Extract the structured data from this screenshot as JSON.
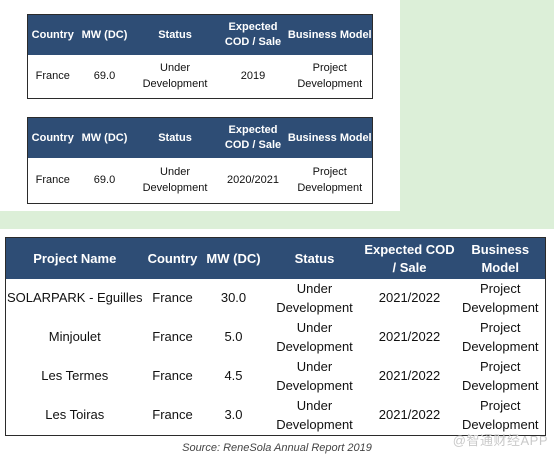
{
  "table1": {
    "headers": [
      "Country",
      "MW (DC)",
      "Status",
      "Expected COD / Sale",
      "Business Model"
    ],
    "row": [
      "France",
      "69.0",
      "Under Development",
      "2019",
      "Project Development"
    ]
  },
  "table2": {
    "headers": [
      "Country",
      "MW (DC)",
      "Status",
      "Expected COD / Sale",
      "Business Model"
    ],
    "row": [
      "France",
      "69.0",
      "Under Development",
      "2020/2021",
      "Project Development"
    ]
  },
  "table3": {
    "headers": [
      "Project Name",
      "Country",
      "MW (DC)",
      "Status",
      "Expected COD / Sale",
      "Business Model"
    ],
    "rows": [
      [
        "SOLARPARK - Eguilles",
        "France",
        "30.0",
        "Under Development",
        "2021/2022",
        "Project Development"
      ],
      [
        "Minjoulet",
        "France",
        "5.0",
        "Under Development",
        "2021/2022",
        "Project Development"
      ],
      [
        "Les Termes",
        "France",
        "4.5",
        "Under Development",
        "2021/2022",
        "Project Development"
      ],
      [
        "Les Toiras",
        "France",
        "3.0",
        "Under Development",
        "2021/2022",
        "Project Development"
      ]
    ]
  },
  "source": "Source: ReneSola Annual Report 2019",
  "watermark": "@智通财经APP",
  "colors": {
    "header_bg": "#2e4d75",
    "page_bg": "#dcefd8"
  }
}
